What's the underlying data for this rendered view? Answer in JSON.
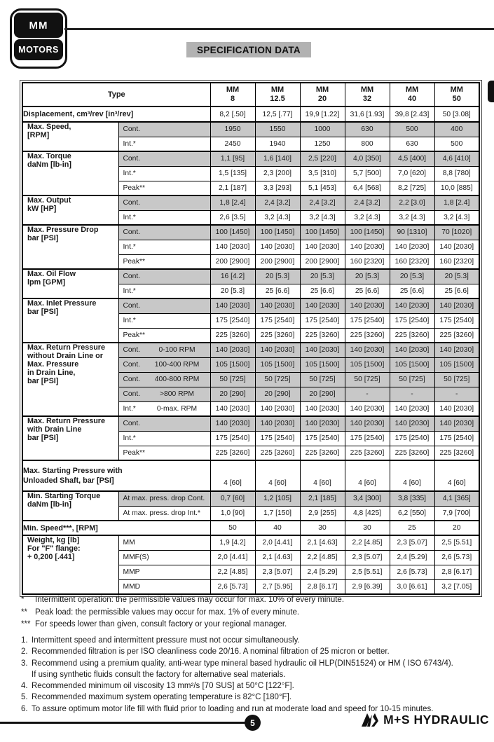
{
  "page": {
    "logo": {
      "line1": "MM",
      "line2": "MOTORS"
    },
    "title": "SPECIFICATION DATA",
    "page_number": "5",
    "brand": "M+S HYDRAULIC"
  },
  "colors": {
    "shaded_row": "#c8c8c8",
    "banner_bg": "#b2b2b2",
    "ink": "#111111"
  },
  "table": {
    "type_header": "Type",
    "columns": [
      {
        "line1": "MM",
        "line2": "8"
      },
      {
        "line1": "MM",
        "line2": "12.5"
      },
      {
        "line1": "MM",
        "line2": "20"
      },
      {
        "line1": "MM",
        "line2": "32"
      },
      {
        "line1": "MM",
        "line2": "40"
      },
      {
        "line1": "MM",
        "line2": "50"
      }
    ],
    "sections": [
      {
        "label_lines": [
          "Displacement, cm³/rev [in³/rev]"
        ],
        "span2": true,
        "disp": true,
        "rows": [
          {
            "shaded": false,
            "values": [
              "8,2 [.50]",
              "12,5 [.77]",
              "19,9 [1.22]",
              "31,6 [1.93]",
              "39,8 [2.43]",
              "50 [3.08]"
            ]
          }
        ]
      },
      {
        "label_lines": [
          "Max. Speed,",
          "[RPM]"
        ],
        "rows": [
          {
            "sub": "Cont.",
            "shaded": true,
            "values": [
              "1950",
              "1550",
              "1000",
              "630",
              "500",
              "400"
            ]
          },
          {
            "sub": "Int.*",
            "shaded": false,
            "values": [
              "2450",
              "1940",
              "1250",
              "800",
              "630",
              "500"
            ]
          }
        ]
      },
      {
        "label_lines": [
          "Max. Torque",
          "daNm [lb-in]",
          ""
        ],
        "rows": [
          {
            "sub": "Cont.",
            "shaded": true,
            "values": [
              "1,1 [95]",
              "1,6 [140]",
              "2,5 [220]",
              "4,0 [350]",
              "4,5 [400]",
              "4,6 [410]"
            ]
          },
          {
            "sub": "Int.*",
            "shaded": false,
            "values": [
              "1,5 [135]",
              "2,3 [200]",
              "3,5 [310]",
              "5,7 [500]",
              "7,0 [620]",
              "8,8 [780]"
            ]
          },
          {
            "sub": "Peak**",
            "shaded": false,
            "values": [
              "2,1 [187]",
              "3,3 [293]",
              "5,1 [453]",
              "6,4 [568]",
              "8,2 [725]",
              "10,0 [885]"
            ]
          }
        ]
      },
      {
        "label_lines": [
          "Max. Output",
          "kW [HP]"
        ],
        "rows": [
          {
            "sub": "Cont.",
            "shaded": true,
            "values": [
              "1,8 [2.4]",
              "2,4 [3.2]",
              "2,4 [3.2]",
              "2,4 [3.2]",
              "2,2 [3.0]",
              "1,8 [2.4]"
            ]
          },
          {
            "sub": "Int.*",
            "shaded": false,
            "values": [
              "2,6 [3.5]",
              "3,2 [4.3]",
              "3,2 [4.3]",
              "3,2 [4.3]",
              "3,2 [4.3]",
              "3,2 [4.3]"
            ]
          }
        ]
      },
      {
        "label_lines": [
          "Max. Pressure Drop",
          "bar [PSI]",
          ""
        ],
        "rows": [
          {
            "sub": "Cont.",
            "shaded": true,
            "values": [
              "100 [1450]",
              "100 [1450]",
              "100 [1450]",
              "100 [1450]",
              "90 [1310]",
              "70 [1020]"
            ]
          },
          {
            "sub": "Int.*",
            "shaded": false,
            "values": [
              "140 [2030]",
              "140 [2030]",
              "140 [2030]",
              "140 [2030]",
              "140 [2030]",
              "140 [2030]"
            ]
          },
          {
            "sub": "Peak**",
            "shaded": false,
            "values": [
              "200 [2900]",
              "200 [2900]",
              "200 [2900]",
              "160 [2320]",
              "160 [2320]",
              "160 [2320]"
            ]
          }
        ]
      },
      {
        "label_lines": [
          "Max. Oil Flow",
          "lpm [GPM]"
        ],
        "rows": [
          {
            "sub": "Cont.",
            "shaded": true,
            "values": [
              "16 [4.2]",
              "20 [5.3]",
              "20 [5.3]",
              "20 [5.3]",
              "20 [5.3]",
              "20 [5.3]"
            ]
          },
          {
            "sub": "Int.*",
            "shaded": false,
            "values": [
              "20 [5.3]",
              "25 [6.6]",
              "25 [6.6]",
              "25 [6.6]",
              "25 [6.6]",
              "25 [6.6]"
            ]
          }
        ]
      },
      {
        "label_lines": [
          "Max. Inlet Pressure",
          "bar [PSI]",
          ""
        ],
        "rows": [
          {
            "sub": "Cont.",
            "shaded": true,
            "values": [
              "140 [2030]",
              "140 [2030]",
              "140 [2030]",
              "140 [2030]",
              "140 [2030]",
              "140 [2030]"
            ]
          },
          {
            "sub": "Int.*",
            "shaded": false,
            "values": [
              "175 [2540]",
              "175 [2540]",
              "175 [2540]",
              "175 [2540]",
              "175 [2540]",
              "175 [2540]"
            ]
          },
          {
            "sub": "Peak**",
            "shaded": false,
            "values": [
              "225 [3260]",
              "225 [3260]",
              "225 [3260]",
              "225 [3260]",
              "225 [3260]",
              "225 [3260]"
            ]
          }
        ]
      },
      {
        "label_lines": [
          "Max. Return Pressure",
          "without Drain Line or",
          "Max. Pressure",
          "in Drain Line,",
          "bar [PSI]"
        ],
        "rows": [
          {
            "sub": "Cont.",
            "sub2": "0-100 RPM",
            "shaded": true,
            "values": [
              "140 [2030]",
              "140 [2030]",
              "140 [2030]",
              "140 [2030]",
              "140 [2030]",
              "140 [2030]"
            ]
          },
          {
            "sub": "Cont.",
            "sub2": "100-400 RPM",
            "shaded": true,
            "values": [
              "105 [1500]",
              "105 [1500]",
              "105 [1500]",
              "105 [1500]",
              "105 [1500]",
              "105 [1500]"
            ]
          },
          {
            "sub": "Cont.",
            "sub2": "400-800 RPM",
            "shaded": true,
            "values": [
              "50 [725]",
              "50 [725]",
              "50 [725]",
              "50 [725]",
              "50 [725]",
              "50 [725]"
            ]
          },
          {
            "sub": "Cont.",
            "sub2": ">800 RPM",
            "shaded": true,
            "values": [
              "20 [290]",
              "20 [290]",
              "20 [290]",
              "-",
              "-",
              "-"
            ]
          },
          {
            "sub": "Int.*",
            "sub2": "0-max. RPM",
            "shaded": false,
            "values": [
              "140 [2030]",
              "140 [2030]",
              "140 [2030]",
              "140 [2030]",
              "140 [2030]",
              "140 [2030]"
            ]
          }
        ]
      },
      {
        "label_lines": [
          "Max. Return Pressure",
          "with Drain Line",
          "bar [PSI]"
        ],
        "rows": [
          {
            "sub": "Cont.",
            "shaded": true,
            "values": [
              "140 [2030]",
              "140 [2030]",
              "140 [2030]",
              "140 [2030]",
              "140 [2030]",
              "140 [2030]"
            ]
          },
          {
            "sub": "Int.*",
            "shaded": false,
            "values": [
              "175 [2540]",
              "175 [2540]",
              "175 [2540]",
              "175 [2540]",
              "175 [2540]",
              "175 [2540]"
            ]
          },
          {
            "sub": "Peak**",
            "shaded": false,
            "values": [
              "225 [3260]",
              "225 [3260]",
              "225 [3260]",
              "225 [3260]",
              "225 [3260]",
              "225 [3260]"
            ]
          }
        ]
      },
      {
        "label_lines": [
          "Max. Starting Pressure with",
          "Unloaded Shaft, bar [PSI]"
        ],
        "span2": true,
        "tall": true,
        "rows": [
          {
            "shaded": false,
            "values": [
              "4 [60]",
              "4 [60]",
              "4 [60]",
              "4 [60]",
              "4 [60]",
              "4 [60]"
            ]
          }
        ]
      },
      {
        "label_lines": [
          "Min. Starting Torque",
          "daNm [lb-in]"
        ],
        "rows": [
          {
            "sub": "At max. press. drop Cont.",
            "shaded": true,
            "values": [
              "0,7 [60]",
              "1,2 [105]",
              "2,1 [185]",
              "3,4 [300]",
              "3,8 [335]",
              "4,1 [365]"
            ]
          },
          {
            "sub": "At max. press. drop  Int.*",
            "shaded": false,
            "values": [
              "1,0 [90]",
              "1,7 [150]",
              "2,9 [255]",
              "4,8 [425]",
              "6,2 [550]",
              "7,9 [700]"
            ]
          }
        ]
      },
      {
        "label_lines": [
          "Min. Speed***, [RPM]"
        ],
        "span2": true,
        "rows": [
          {
            "shaded": false,
            "values": [
              "50",
              "40",
              "30",
              "30",
              "25",
              "20"
            ]
          }
        ]
      },
      {
        "label_lines": [
          "Weight, kg [lb]",
          "",
          "For \"F\" flange:",
          "+ 0,200 [.441]"
        ],
        "rows": [
          {
            "sub": "MM",
            "shaded": false,
            "values": [
              "1,9 [4.2]",
              "2,0 [4.41]",
              "2,1 [4.63]",
              "2,2 [4.85]",
              "2,3 [5.07]",
              "2,5 [5.51]"
            ]
          },
          {
            "sub": "MMF(S)",
            "shaded": false,
            "values": [
              "2,0 [4.41]",
              "2,1 [4.63]",
              "2,2 [4.85]",
              "2,3 [5.07]",
              "2,4 [5.29]",
              "2,6 [5.73]"
            ]
          },
          {
            "sub": "MMP",
            "shaded": false,
            "values": [
              "2,2 [4.85]",
              "2,3 [5.07]",
              "2,4 [5.29]",
              "2,5 [5.51]",
              "2,6 [5.73]",
              "2,8 [6.17]"
            ]
          },
          {
            "sub": "MMD",
            "shaded": false,
            "values": [
              "2,6 [5.73]",
              "2,7 [5.95]",
              "2,8 [6.17]",
              "2,9 [6.39]",
              "3,0 [6.61]",
              "3,2 [7.05]"
            ]
          }
        ]
      }
    ]
  },
  "footnotes": [
    {
      "marker": "*",
      "text": "Intermittent operation: the permissible values may occur for max. 10% of every minute."
    },
    {
      "marker": "**",
      "text": "Peak load: the permissible values may occur for max. 1% of every minute."
    },
    {
      "marker": "***",
      "text": "For speeds lower than given, consult factory or your regional manager."
    }
  ],
  "notes": [
    {
      "num": "1.",
      "lines": [
        "Intermittent speed and intermittent pressure must not occur simultaneously."
      ]
    },
    {
      "num": "2.",
      "lines": [
        "Recommended filtration is per ISO cleanliness code 20/16. A nominal filtration of 25 micron or better."
      ]
    },
    {
      "num": "3.",
      "lines": [
        "Recommend using a premium quality, anti-wear type mineral based hydraulic oil HLP(DIN51524) or HM ( ISO 6743/4).",
        "If using synthetic fluids consult the factory for alternative seal materials."
      ]
    },
    {
      "num": "4.",
      "lines": [
        "Recommended minimum oil viscosity 13 mm²/s [70 SUS] at 50°C [122°F]."
      ]
    },
    {
      "num": "5.",
      "lines": [
        "Recommended maximum system operating temperature is 82°C [180°F]."
      ]
    },
    {
      "num": "6.",
      "lines": [
        "To assure optimum motor life fill with fluid prior to loading and run at moderate load and speed for 10-15 minutes."
      ]
    }
  ]
}
